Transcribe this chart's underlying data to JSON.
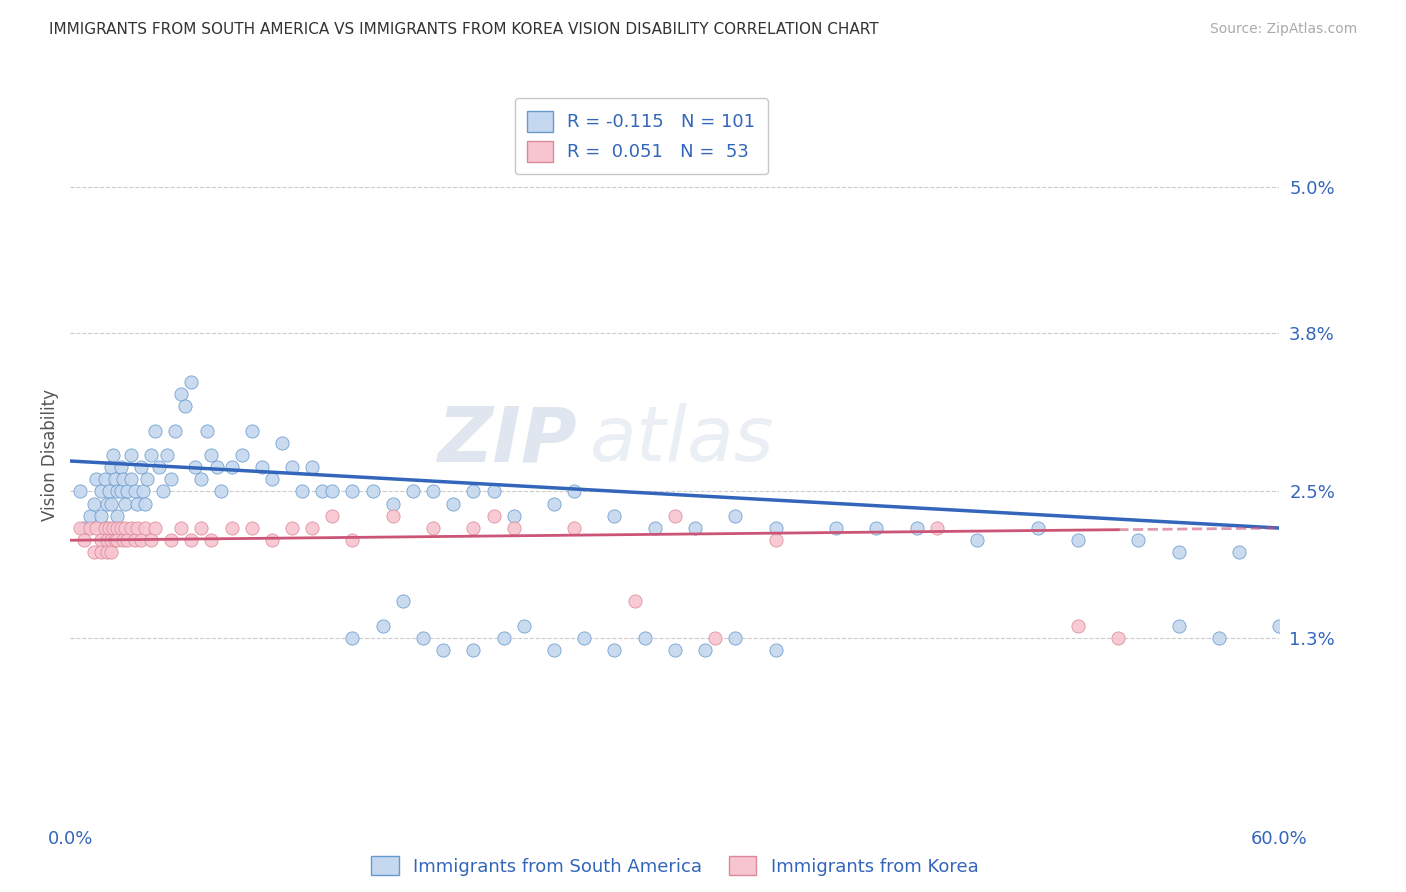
{
  "title": "IMMIGRANTS FROM SOUTH AMERICA VS IMMIGRANTS FROM KOREA VISION DISABILITY CORRELATION CHART",
  "source": "Source: ZipAtlas.com",
  "ylabel": "Vision Disability",
  "xlim": [
    0.0,
    0.6
  ],
  "ylim": [
    -0.002,
    0.058
  ],
  "ytick_vals": [
    0.013,
    0.025,
    0.038,
    0.05
  ],
  "ytick_labels": [
    "1.3%",
    "2.5%",
    "3.8%",
    "5.0%"
  ],
  "R_blue": -0.115,
  "N_blue": 101,
  "R_pink": 0.051,
  "N_pink": 53,
  "blue_fill": "#c5d8ef",
  "pink_fill": "#f7c5d0",
  "blue_edge": "#6699cc",
  "pink_edge": "#dd8899",
  "line_blue_color": "#3366bb",
  "line_pink_color": "#cc5577",
  "text_color": "#3366bb",
  "legend_blue_label": "Immigrants from South America",
  "legend_pink_label": "Immigrants from Korea",
  "watermark": "ZIPAtlas",
  "blue_line_start_y": 0.0275,
  "blue_line_end_y": 0.022,
  "pink_line_start_y": 0.021,
  "pink_line_end_y": 0.022,
  "blue_x": [
    0.005,
    0.007,
    0.01,
    0.012,
    0.013,
    0.015,
    0.015,
    0.017,
    0.018,
    0.018,
    0.019,
    0.02,
    0.02,
    0.021,
    0.022,
    0.023,
    0.023,
    0.025,
    0.025,
    0.026,
    0.027,
    0.028,
    0.03,
    0.03,
    0.032,
    0.033,
    0.035,
    0.036,
    0.037,
    0.038,
    0.04,
    0.042,
    0.044,
    0.046,
    0.048,
    0.05,
    0.052,
    0.055,
    0.057,
    0.06,
    0.062,
    0.065,
    0.068,
    0.07,
    0.073,
    0.075,
    0.08,
    0.085,
    0.09,
    0.095,
    0.1,
    0.105,
    0.11,
    0.115,
    0.12,
    0.125,
    0.13,
    0.14,
    0.15,
    0.16,
    0.17,
    0.18,
    0.19,
    0.2,
    0.21,
    0.22,
    0.24,
    0.25,
    0.27,
    0.29,
    0.31,
    0.33,
    0.35,
    0.38,
    0.4,
    0.42,
    0.45,
    0.48,
    0.5,
    0.53,
    0.55,
    0.58,
    0.6,
    0.14,
    0.155,
    0.165,
    0.175,
    0.185,
    0.2,
    0.215,
    0.225,
    0.24,
    0.255,
    0.27,
    0.285,
    0.3,
    0.315,
    0.33,
    0.35,
    0.55,
    0.57
  ],
  "blue_y": [
    0.025,
    0.022,
    0.023,
    0.024,
    0.026,
    0.025,
    0.023,
    0.026,
    0.024,
    0.022,
    0.025,
    0.027,
    0.024,
    0.028,
    0.026,
    0.025,
    0.023,
    0.027,
    0.025,
    0.026,
    0.024,
    0.025,
    0.028,
    0.026,
    0.025,
    0.024,
    0.027,
    0.025,
    0.024,
    0.026,
    0.028,
    0.03,
    0.027,
    0.025,
    0.028,
    0.026,
    0.03,
    0.033,
    0.032,
    0.034,
    0.027,
    0.026,
    0.03,
    0.028,
    0.027,
    0.025,
    0.027,
    0.028,
    0.03,
    0.027,
    0.026,
    0.029,
    0.027,
    0.025,
    0.027,
    0.025,
    0.025,
    0.025,
    0.025,
    0.024,
    0.025,
    0.025,
    0.024,
    0.025,
    0.025,
    0.023,
    0.024,
    0.025,
    0.023,
    0.022,
    0.022,
    0.023,
    0.022,
    0.022,
    0.022,
    0.022,
    0.021,
    0.022,
    0.021,
    0.021,
    0.02,
    0.02,
    0.014,
    0.013,
    0.014,
    0.016,
    0.013,
    0.012,
    0.012,
    0.013,
    0.014,
    0.012,
    0.013,
    0.012,
    0.013,
    0.012,
    0.012,
    0.013,
    0.012,
    0.014,
    0.013
  ],
  "pink_x": [
    0.005,
    0.007,
    0.01,
    0.012,
    0.013,
    0.015,
    0.015,
    0.017,
    0.018,
    0.018,
    0.019,
    0.02,
    0.02,
    0.021,
    0.022,
    0.023,
    0.023,
    0.025,
    0.026,
    0.027,
    0.028,
    0.03,
    0.032,
    0.033,
    0.035,
    0.037,
    0.04,
    0.042,
    0.05,
    0.055,
    0.06,
    0.065,
    0.07,
    0.08,
    0.09,
    0.1,
    0.11,
    0.12,
    0.13,
    0.14,
    0.16,
    0.18,
    0.2,
    0.21,
    0.22,
    0.25,
    0.28,
    0.3,
    0.32,
    0.35,
    0.43,
    0.5,
    0.52
  ],
  "pink_y": [
    0.022,
    0.021,
    0.022,
    0.02,
    0.022,
    0.021,
    0.02,
    0.022,
    0.021,
    0.02,
    0.022,
    0.021,
    0.02,
    0.022,
    0.021,
    0.022,
    0.021,
    0.022,
    0.021,
    0.022,
    0.021,
    0.022,
    0.021,
    0.022,
    0.021,
    0.022,
    0.021,
    0.022,
    0.021,
    0.022,
    0.021,
    0.022,
    0.021,
    0.022,
    0.022,
    0.021,
    0.022,
    0.022,
    0.023,
    0.021,
    0.023,
    0.022,
    0.022,
    0.023,
    0.022,
    0.022,
    0.016,
    0.023,
    0.013,
    0.021,
    0.022,
    0.014,
    0.013
  ]
}
